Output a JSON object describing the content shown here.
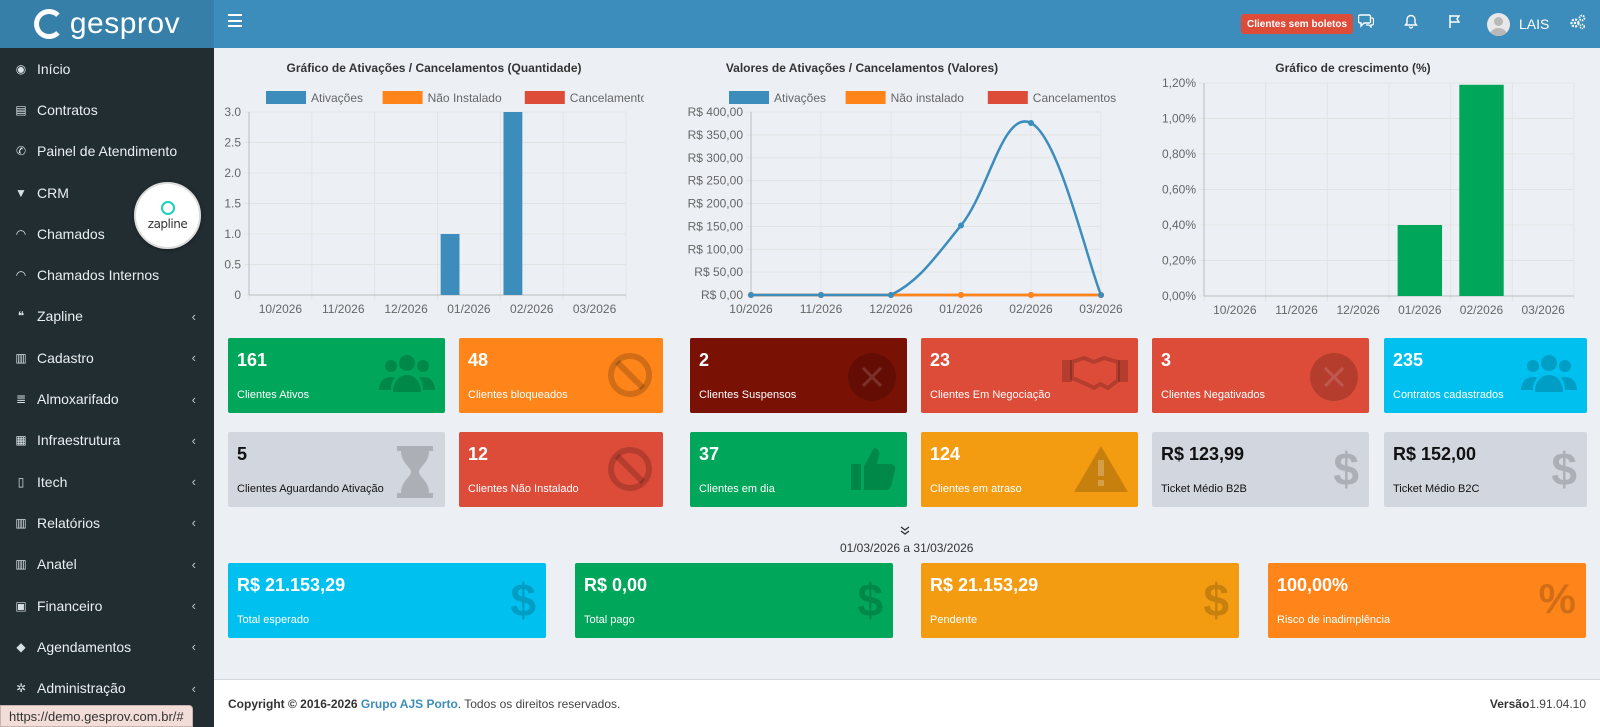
{
  "brand": {
    "name": "gesprov"
  },
  "header": {
    "badge": "Clientes sem boletos",
    "user": "LAIS",
    "icons": [
      "chat-icon",
      "bell-icon",
      "flag-icon",
      "cogs-icon"
    ]
  },
  "sidebar": {
    "items": [
      {
        "label": "Início",
        "icon": "dashboard-icon",
        "chev": false
      },
      {
        "label": "Contratos",
        "icon": "file-icon",
        "chev": false
      },
      {
        "label": "Painel de Atendimento",
        "icon": "phone-icon",
        "chev": false
      },
      {
        "label": "CRM",
        "icon": "filter-icon",
        "chev": false
      },
      {
        "label": "Chamados",
        "icon": "headset-icon",
        "chev": false
      },
      {
        "label": "Chamados Internos",
        "icon": "headset-icon",
        "chev": false
      },
      {
        "label": "Zapline",
        "icon": "comments-icon",
        "chev": true
      },
      {
        "label": "Cadastro",
        "icon": "book-icon",
        "chev": true
      },
      {
        "label": "Almoxarifado",
        "icon": "database-icon",
        "chev": true
      },
      {
        "label": "Infraestrutura",
        "icon": "bank-icon",
        "chev": true
      },
      {
        "label": "Itech",
        "icon": "mobile-icon",
        "chev": true
      },
      {
        "label": "Relatórios",
        "icon": "book-icon",
        "chev": true
      },
      {
        "label": "Anatel",
        "icon": "book-icon",
        "chev": true
      },
      {
        "label": "Financeiro",
        "icon": "money-icon",
        "chev": true
      },
      {
        "label": "Agendamentos",
        "icon": "tag-icon",
        "chev": true
      },
      {
        "label": "Administração",
        "icon": "cogs-icon",
        "chev": true
      }
    ],
    "zapline_badge": "zapline",
    "status_url": "https://demo.gesprov.com.br/#"
  },
  "chart_data": [
    {
      "type": "bar",
      "title": "Gráfico de Ativações / Cancelamentos (Quantidade)",
      "categories": [
        "10/2026",
        "11/2026",
        "12/2026",
        "01/2026",
        "02/2026",
        "03/2026"
      ],
      "series": [
        {
          "name": "Ativações",
          "color": "#3c8dbc",
          "values": [
            0,
            0,
            0,
            1,
            3,
            0
          ]
        },
        {
          "name": "Não Instalado",
          "color": "#ff851b",
          "values": [
            0,
            0,
            0,
            0,
            0,
            0
          ]
        },
        {
          "name": "Cancelamentos",
          "color": "#dd4b39",
          "values": [
            0,
            0,
            0,
            0,
            0,
            0
          ]
        }
      ],
      "yticks": [
        "0",
        "0.5",
        "1.0",
        "1.5",
        "2.0",
        "2.5",
        "3.0"
      ],
      "ylim": [
        0,
        3
      ],
      "legend": "top"
    },
    {
      "type": "line",
      "title": "Valores de Ativações / Cancelamentos (Valores)",
      "categories": [
        "10/2026",
        "11/2026",
        "12/2026",
        "01/2026",
        "02/2026",
        "03/2026"
      ],
      "series": [
        {
          "name": "Ativações",
          "color": "#3c8dbc",
          "values": [
            0,
            0,
            0,
            152,
            376,
            0
          ]
        },
        {
          "name": "Não instalado",
          "color": "#ff851b",
          "values": [
            0,
            0,
            0,
            0,
            0,
            0
          ]
        },
        {
          "name": "Cancelamentos",
          "color": "#dd4b39",
          "values": [
            0,
            0,
            0,
            0,
            0,
            0
          ]
        }
      ],
      "yticks": [
        "R$ 0,00",
        "R$ 50,00",
        "R$ 100,00",
        "R$ 150,00",
        "R$ 200,00",
        "R$ 250,00",
        "R$ 300,00",
        "R$ 350,00",
        "R$ 400,00"
      ],
      "ylim": [
        0,
        400
      ],
      "legend": "top"
    },
    {
      "type": "bar",
      "title": "Gráfico de crescimento (%)",
      "categories": [
        "10/2026",
        "11/2026",
        "12/2026",
        "01/2026",
        "02/2026",
        "03/2026"
      ],
      "series": [
        {
          "name": "",
          "color": "#00a65a",
          "values": [
            0,
            0,
            0,
            0.4,
            1.19,
            0
          ]
        }
      ],
      "yticks": [
        "0,00%",
        "0,20%",
        "0,40%",
        "0,60%",
        "0,80%",
        "1,00%",
        "1,20%"
      ],
      "ylim": [
        0,
        1.2
      ]
    }
  ],
  "stats_row1": [
    {
      "value": "161",
      "label": "Clientes Ativos",
      "color": "green",
      "icon": "users-icon"
    },
    {
      "value": "48",
      "label": "Clientes bloqueados",
      "color": "orange",
      "icon": "ban-icon"
    },
    {
      "value": "2",
      "label": "Clientes Suspensos",
      "color": "maroon",
      "icon": "times-circle-icon"
    },
    {
      "value": "23",
      "label": "Clientes Em Negociação",
      "color": "red",
      "icon": "handshake-icon"
    },
    {
      "value": "3",
      "label": "Clientes Negativados",
      "color": "red",
      "icon": "times-circle-icon"
    },
    {
      "value": "235",
      "label": "Contratos cadastrados",
      "color": "aqua",
      "icon": "users-icon"
    }
  ],
  "stats_row2": [
    {
      "value": "5",
      "label": "Clientes Aguardando Ativação",
      "color": "gray",
      "icon": "hourglass-icon"
    },
    {
      "value": "12",
      "label": "Clientes Não Instalado",
      "color": "red",
      "icon": "ban-icon"
    },
    {
      "value": "37",
      "label": "Clientes em dia",
      "color": "green",
      "icon": "thumbs-up-icon"
    },
    {
      "value": "124",
      "label": "Clientes em atraso",
      "color": "yellow",
      "icon": "warning-icon"
    },
    {
      "value": "R$ 123,99",
      "label": "Ticket Médio B2B",
      "color": "gray",
      "icon": "dollar-icon"
    },
    {
      "value": "R$ 152,00",
      "label": "Ticket Médio B2C",
      "color": "gray",
      "icon": "dollar-icon"
    }
  ],
  "date_range": "01/03/2026 a 31/03/2026",
  "totals": [
    {
      "value": "R$ 21.153,29",
      "label": "Total esperado",
      "color": "aqua",
      "icon": "dollar-icon"
    },
    {
      "value": "R$ 0,00",
      "label": "Total pago",
      "color": "green",
      "icon": "dollar-icon"
    },
    {
      "value": "R$ 21.153,29",
      "label": "Pendente",
      "color": "yellow",
      "icon": "dollar-icon"
    },
    {
      "value": "100,00%",
      "label": "Risco de inadimplência",
      "color": "orange",
      "icon": "percent-icon"
    }
  ],
  "footer": {
    "copyright": "Copyright © 2016-2026",
    "company": "Grupo AJS Porto",
    "rights": ". Todos os direitos reservados.",
    "version_label": "Versão",
    "version": "1.91.04.10"
  }
}
